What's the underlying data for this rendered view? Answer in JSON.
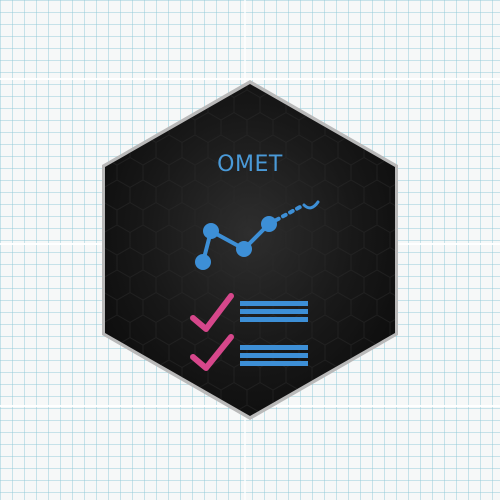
{
  "badge": {
    "title": "OMET",
    "accent_color": "#3d8fd6",
    "check_color": "#d6478b",
    "background_color": "#121212",
    "icons": [
      "line-chart-icon",
      "checkmark-icon",
      "list-lines-icon"
    ],
    "checklist": [
      {
        "icon": "checkmark-icon"
      },
      {
        "icon": "checkmark-icon"
      }
    ]
  }
}
